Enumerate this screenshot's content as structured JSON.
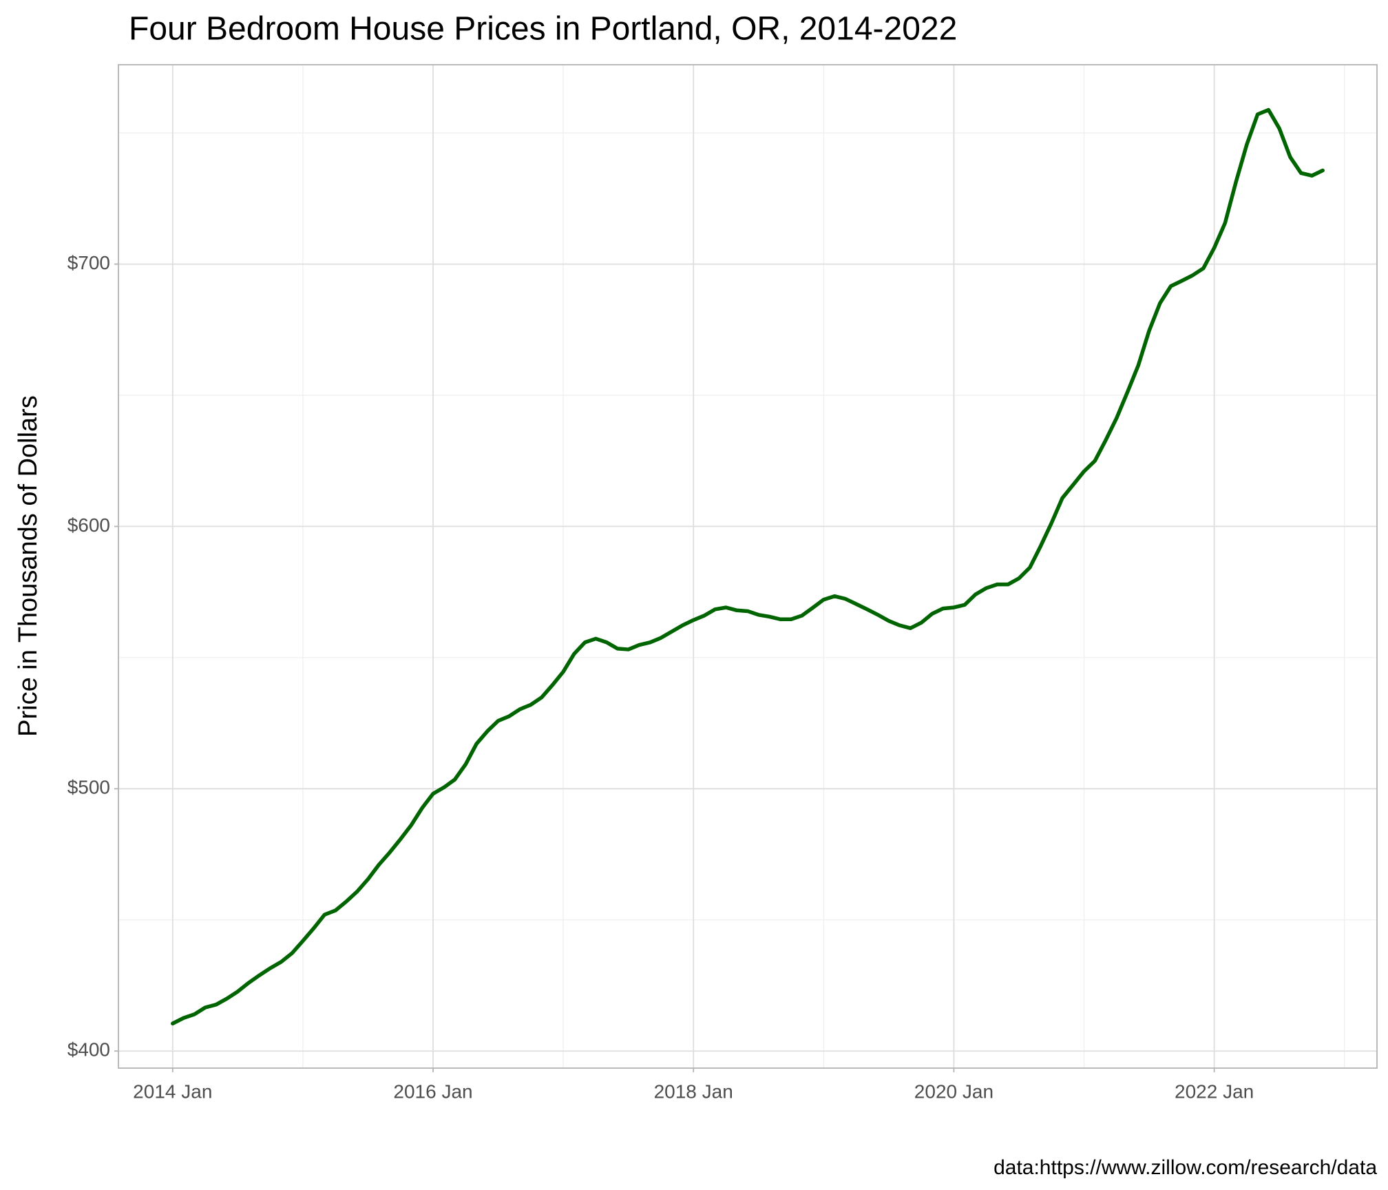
{
  "chart_data": {
    "type": "line",
    "title": "Four Bedroom House Prices in Portland, OR, 2014-2022",
    "y_label": "Price in Thousands of Dollars",
    "caption": "data:https://www.zillow.com/research/data",
    "x": [
      "2014-01",
      "2014-02",
      "2014-03",
      "2014-04",
      "2014-05",
      "2014-06",
      "2014-07",
      "2014-08",
      "2014-09",
      "2014-10",
      "2014-11",
      "2014-12",
      "2015-01",
      "2015-02",
      "2015-03",
      "2015-04",
      "2015-05",
      "2015-06",
      "2015-07",
      "2015-08",
      "2015-09",
      "2015-10",
      "2015-11",
      "2015-12",
      "2016-01",
      "2016-02",
      "2016-03",
      "2016-04",
      "2016-05",
      "2016-06",
      "2016-07",
      "2016-08",
      "2016-09",
      "2016-10",
      "2016-11",
      "2016-12",
      "2017-01",
      "2017-02",
      "2017-03",
      "2017-04",
      "2017-05",
      "2017-06",
      "2017-07",
      "2017-08",
      "2017-09",
      "2017-10",
      "2017-11",
      "2017-12",
      "2018-01",
      "2018-02",
      "2018-03",
      "2018-04",
      "2018-05",
      "2018-06",
      "2018-07",
      "2018-08",
      "2018-09",
      "2018-10",
      "2018-11",
      "2018-12",
      "2019-01",
      "2019-02",
      "2019-03",
      "2019-04",
      "2019-05",
      "2019-06",
      "2019-07",
      "2019-08",
      "2019-09",
      "2019-10",
      "2019-11",
      "2019-12",
      "2020-01",
      "2020-02",
      "2020-03",
      "2020-04",
      "2020-05",
      "2020-06",
      "2020-07",
      "2020-08",
      "2020-09",
      "2020-10",
      "2020-11",
      "2020-12",
      "2021-01",
      "2021-02",
      "2021-03",
      "2021-04",
      "2021-05",
      "2021-06",
      "2021-07",
      "2021-08",
      "2021-09",
      "2021-10",
      "2021-11",
      "2021-12",
      "2022-01",
      "2022-02",
      "2022-03",
      "2022-04",
      "2022-05",
      "2022-06",
      "2022-07",
      "2022-08",
      "2022-09",
      "2022-10",
      "2022-11"
    ],
    "series": [
      {
        "name": "Price",
        "color": "#006400",
        "values": [
          410.5,
          412.6,
          414,
          416.6,
          417.7,
          420,
          422.7,
          426,
          428.9,
          431.6,
          434,
          437.3,
          442,
          446.8,
          452,
          453.6,
          457,
          460.8,
          465.5,
          471,
          475.7,
          480.8,
          486.2,
          492.7,
          498.1,
          500.5,
          503.5,
          509.3,
          517.1,
          521.9,
          525.9,
          527.6,
          530.3,
          532,
          534.8,
          539.5,
          544.6,
          551.4,
          555.8,
          557.2,
          555.8,
          553.4,
          553.1,
          554.8,
          555.8,
          557.5,
          559.9,
          562.3,
          564.3,
          566,
          568.4,
          569.1,
          568,
          567.7,
          566.3,
          565.6,
          564.6,
          564.6,
          566,
          569,
          572.1,
          573.4,
          572.4,
          570.4,
          568.4,
          566.3,
          564,
          562.3,
          561.2,
          563.3,
          566.7,
          568.7,
          569.1,
          570.1,
          574.1,
          576.5,
          577.9,
          577.9,
          580.2,
          584.3,
          592.5,
          601.3,
          610.8,
          615.9,
          621,
          625,
          632.9,
          641.3,
          651.2,
          661.4,
          674.6,
          685.1,
          691.6,
          693.6,
          695.7,
          698.4,
          706.2,
          715.7,
          731.3,
          745.6,
          757.1,
          758.8,
          751.7,
          740.8,
          734.7,
          733.7,
          735.7
        ]
      }
    ],
    "xlim": [
      "2013-08",
      "2023-04"
    ],
    "xticks": [
      {
        "value": "2014-01",
        "label": "2014 Jan"
      },
      {
        "value": "2016-01",
        "label": "2016 Jan"
      },
      {
        "value": "2018-01",
        "label": "2018 Jan"
      },
      {
        "value": "2020-01",
        "label": "2020 Jan"
      },
      {
        "value": "2022-01",
        "label": "2022 Jan"
      }
    ],
    "minor_xticks": [
      "2015-01",
      "2017-01",
      "2019-01",
      "2021-01",
      "2023-01"
    ],
    "ylim": [
      393.5,
      776
    ],
    "yticks": [
      {
        "value": 400,
        "label": "$400"
      },
      {
        "value": 500,
        "label": "$500"
      },
      {
        "value": 600,
        "label": "$600"
      },
      {
        "value": 700,
        "label": "$700"
      }
    ],
    "minor_yticks": [
      450,
      550,
      650,
      750
    ],
    "grid": true
  }
}
